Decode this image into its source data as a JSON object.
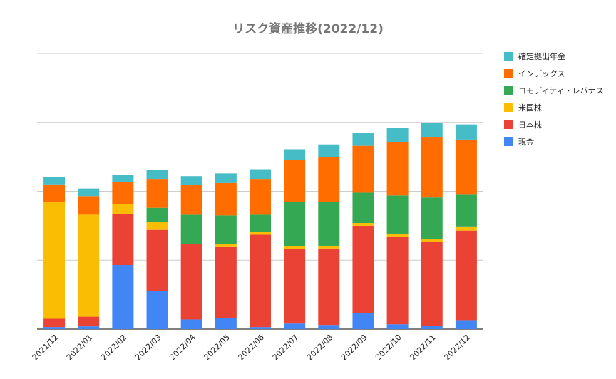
{
  "chart_data": {
    "type": "bar",
    "stacked": true,
    "title": "リスク資産推移(2022/12)",
    "xlabel": "",
    "ylabel": "",
    "ylim": [
      0,
      400
    ],
    "y_gridlines": [
      0,
      100,
      200,
      300,
      400
    ],
    "y_tick_labels_shown": false,
    "legend_position": "right",
    "categories": [
      "2021/12",
      "2022/01",
      "2022/02",
      "2022/03",
      "2022/04",
      "2022/05",
      "2022/06",
      "2022/07",
      "2022/08",
      "2022/09",
      "2022/10",
      "2022/11",
      "2022/12"
    ],
    "series": [
      {
        "name": "現金",
        "color": "#4285F4",
        "values": [
          3,
          4,
          93,
          55,
          14,
          16,
          3,
          8,
          6,
          23,
          7,
          5,
          13
        ]
      },
      {
        "name": "日本株",
        "color": "#EA4335",
        "values": [
          12,
          14,
          74,
          89,
          110,
          103,
          134,
          108,
          111,
          127,
          127,
          122,
          130
        ]
      },
      {
        "name": "米国株",
        "color": "#FBBC04",
        "values": [
          169,
          148,
          14,
          11,
          0,
          5,
          4,
          4,
          4,
          4,
          4,
          4,
          6
        ]
      },
      {
        "name": "コモディティ・レバナス",
        "color": "#34A853",
        "values": [
          0,
          0,
          0,
          21,
          42,
          41,
          25,
          65,
          64,
          44,
          56,
          60,
          46
        ]
      },
      {
        "name": "インデックス",
        "color": "#FF6D01",
        "values": [
          26,
          27,
          32,
          42,
          43,
          47,
          52,
          60,
          65,
          68,
          77,
          87,
          80
        ]
      },
      {
        "name": "確定拠出年金",
        "color": "#46BDC6",
        "values": [
          11,
          11,
          11,
          13,
          13,
          14,
          14,
          16,
          18,
          19,
          21,
          21,
          22
        ]
      }
    ]
  },
  "legend": {
    "order": [
      "確定拠出年金",
      "インデックス",
      "コモディティ・レバナス",
      "米国株",
      "日本株",
      "現金"
    ]
  },
  "colors": {
    "grid": "#cccccc",
    "axis": "#333333",
    "tick_text": "#222222",
    "title": "#757575"
  }
}
